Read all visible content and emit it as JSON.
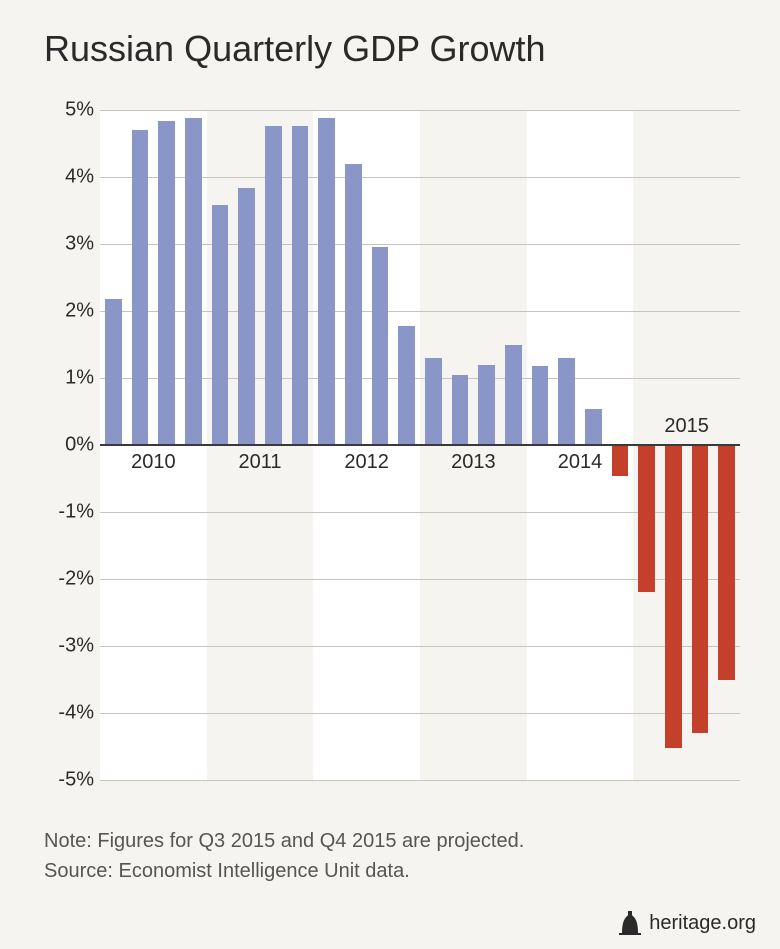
{
  "title": "Russian Quarterly GDP Growth",
  "note_line1": "Note: Figures for Q3 2015 and Q4 2015 are projected.",
  "note_line2": "Source: Economist Intelligence Unit data.",
  "attribution": "heritage.org",
  "chart": {
    "type": "bar",
    "background_color": "#f6f4f0",
    "alt_band_color": "#ffffff",
    "grid_color": "#c8c4bd",
    "axis_color": "#3a3a3a",
    "text_color": "#2a2a2a",
    "positive_color": "#8a96c8",
    "negative_color": "#c5402a",
    "title_fontsize": 36,
    "tick_fontsize": 20,
    "note_fontsize": 20,
    "ylim": [
      -5,
      5
    ],
    "ytick_step": 1,
    "ytick_labels": [
      "-5%",
      "-4%",
      "-3%",
      "-2%",
      "-1%",
      "0%",
      "1%",
      "2%",
      "3%",
      "4%",
      "5%"
    ],
    "years": [
      "2010",
      "2011",
      "2012",
      "2013",
      "2014",
      "2015"
    ],
    "year_label_above_zero": [
      true,
      true,
      true,
      true,
      true,
      false
    ],
    "alt_bands_on": [
      0,
      2,
      4
    ],
    "bar_width_ratio": 0.62,
    "values": [
      2.18,
      4.7,
      4.83,
      4.88,
      3.58,
      3.83,
      4.76,
      4.76,
      4.88,
      4.19,
      2.96,
      1.78,
      1.3,
      1.05,
      1.2,
      1.5,
      1.18,
      1.3,
      0.53,
      -0.47,
      -2.2,
      -4.52,
      -4.3,
      -3.5
    ]
  }
}
